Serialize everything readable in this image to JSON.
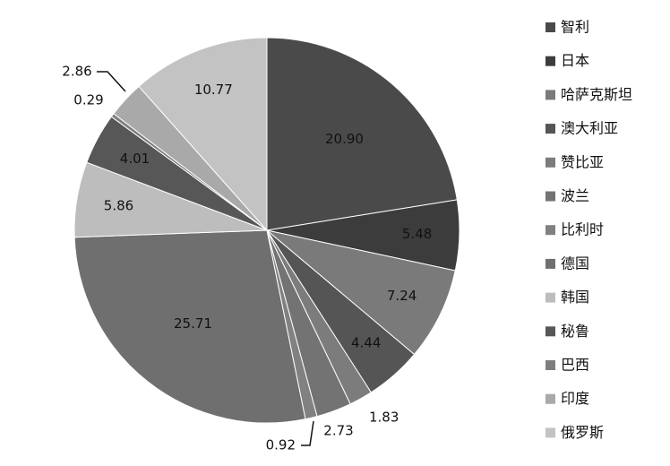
{
  "chart_data": {
    "type": "pie",
    "title": "",
    "legend_position": "right",
    "start": "top",
    "direction": "clockwise",
    "slices": [
      {
        "label": "智利",
        "value": 20.9,
        "color": "#4a4a4a"
      },
      {
        "label": "日本",
        "value": 5.48,
        "color": "#3c3c3c"
      },
      {
        "label": "哈萨克斯坦",
        "value": 7.24,
        "color": "#7a7a7a"
      },
      {
        "label": "澳大利亚",
        "value": 4.44,
        "color": "#555555"
      },
      {
        "label": "赞比亚",
        "value": 1.83,
        "color": "#7c7c7c"
      },
      {
        "label": "波兰",
        "value": 2.73,
        "color": "#737373"
      },
      {
        "label": "比利时",
        "value": 0.92,
        "color": "#818181"
      },
      {
        "label": "德国",
        "value": 25.71,
        "color": "#6f6f6f"
      },
      {
        "label": "韩国",
        "value": 5.86,
        "color": "#bdbdbd"
      },
      {
        "label": "秘鲁",
        "value": 4.01,
        "color": "#575757"
      },
      {
        "label": "巴西",
        "value": 0.29,
        "color": "#7e7e7e"
      },
      {
        "label": "印度",
        "value": 2.86,
        "color": "#a9a9a9"
      },
      {
        "label": "俄罗斯",
        "value": 10.77,
        "color": "#c3c3c3"
      }
    ]
  }
}
